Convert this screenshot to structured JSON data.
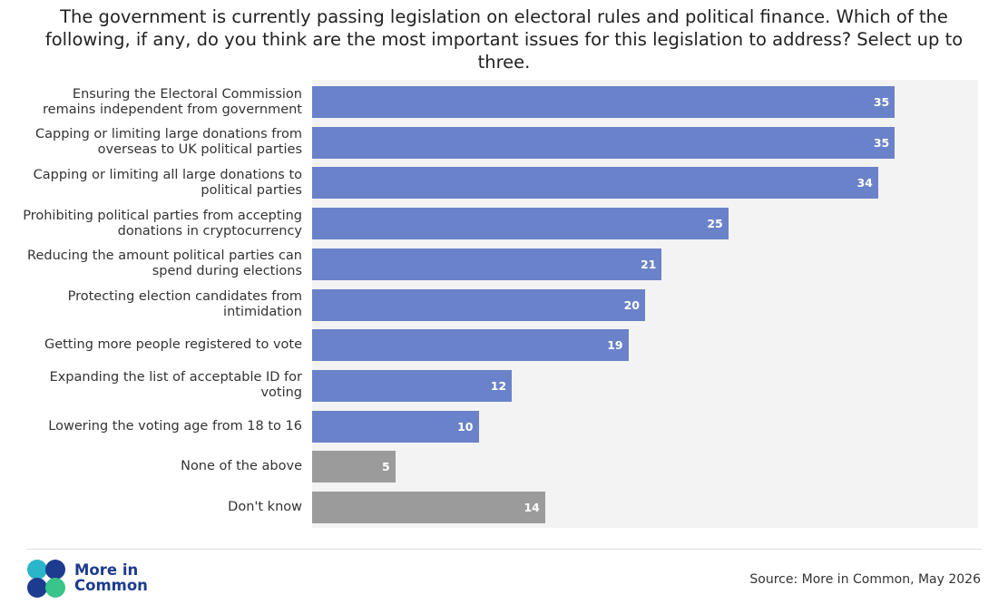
{
  "brand": "More in Common",
  "chart_data": {
    "type": "barh",
    "subtitle": "The government is currently passing legislation on electoral rules and political finance. Which of the following, if any, do you think are the most important issues for this legislation to address? Select up to three.",
    "source": "Source: More in Common, May 2026",
    "categories": [
      "Ensuring the Electoral Commission remains independent from government",
      "Capping or limiting large donations from overseas to UK political parties",
      "Capping or limiting all large donations to political parties",
      "Prohibiting political parties from accepting donations in cryptocurrency",
      "Reducing the amount political parties can spend during elections",
      "Protecting election candidates from intimidation",
      "Getting more people registered to vote",
      "Expanding the list of acceptable ID for voting",
      "Lowering the voting age from 18 to 16",
      "None of the above",
      "Don't know"
    ],
    "values": [
      35,
      35,
      34,
      25,
      21,
      20,
      19,
      12,
      10,
      5,
      14
    ],
    "colors": [
      "#6a82c9",
      "#6a82c9",
      "#6a82c9",
      "#6a82c9",
      "#6a82c9",
      "#6a82c9",
      "#6a82c9",
      "#6a82c9",
      "#6a82c9",
      "#9b9b9b",
      "#9b9b9b"
    ],
    "xlim": [
      0,
      40
    ]
  }
}
